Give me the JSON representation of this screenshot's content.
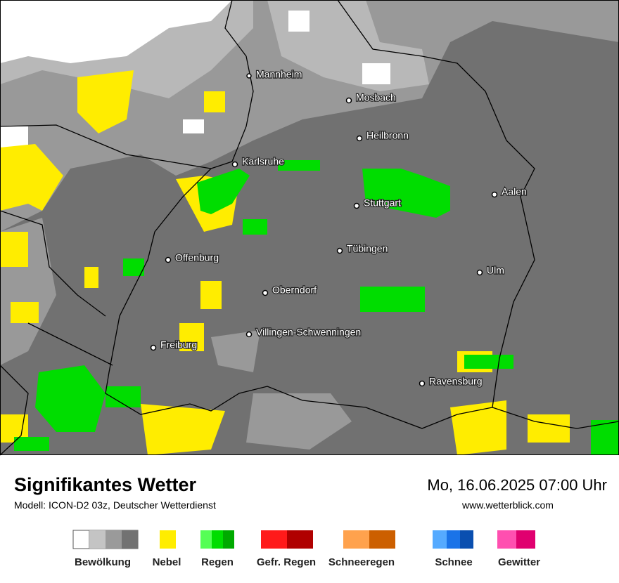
{
  "map": {
    "cities": [
      "Mannheim",
      "Mosbach",
      "Heilbronn",
      "Karlsruhe",
      "Aalen",
      "Stuttgart",
      "Tübingen",
      "Offenburg",
      "Ulm",
      "Oberndorf",
      "Villingen-Schwenningen",
      "Freiburg",
      "Ravensburg"
    ]
  },
  "footer": {
    "title": "Signifikantes Wetter",
    "subtitle": "Modell: ICON-D2 03z, Deutscher Wetterdienst",
    "datetime": "Mo, 16.06.2025 07:00 Uhr",
    "website": "www.wetterblick.com"
  },
  "legend": {
    "items": [
      "Bewölkung",
      "Nebel",
      "Regen",
      "Gefr. Regen",
      "Schneeregen",
      "Schnee",
      "Gewitter"
    ]
  }
}
